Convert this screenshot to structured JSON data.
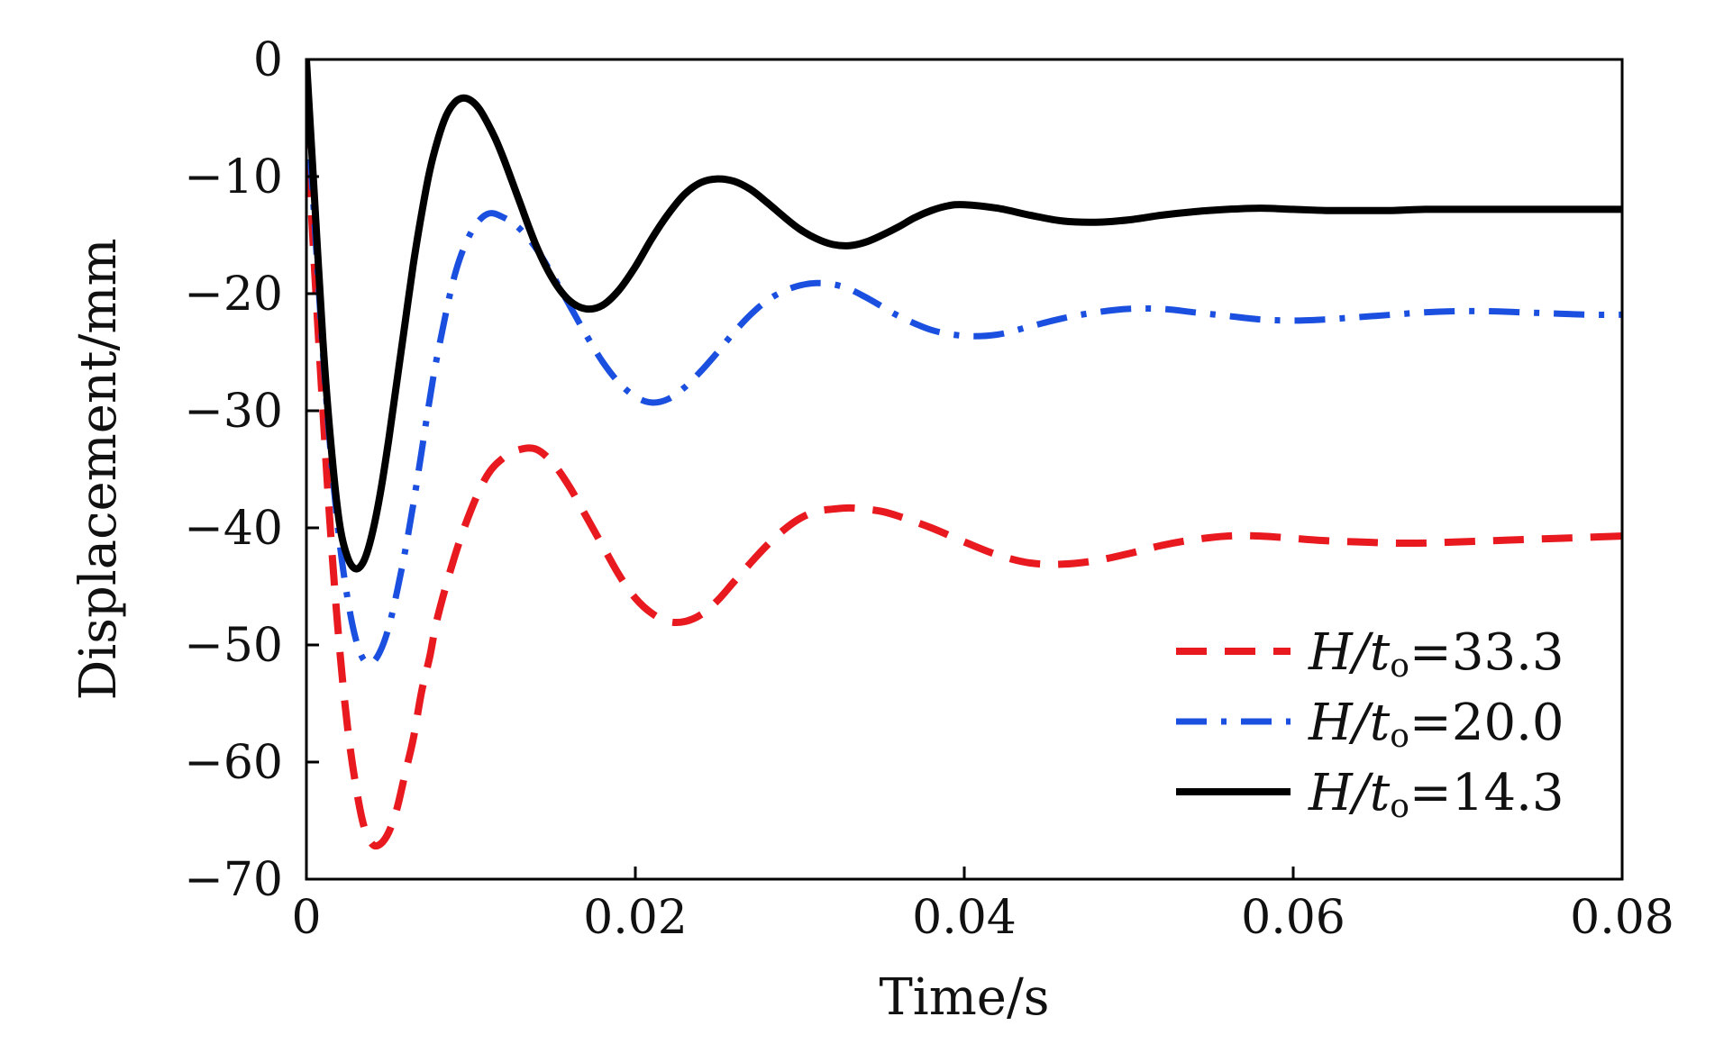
{
  "chart_data": {
    "type": "line",
    "xlabel": "Time/s",
    "ylabel": "Displacement/mm",
    "xlim": [
      0,
      0.08
    ],
    "ylim": [
      -70,
      0
    ],
    "xticks": [
      0,
      0.02,
      0.04,
      0.06,
      0.08
    ],
    "xtick_labels": [
      "0",
      "0.02",
      "0.04",
      "0.06",
      "0.08"
    ],
    "yticks": [
      0,
      -10,
      -20,
      -30,
      -40,
      -50,
      -60,
      -70
    ],
    "ytick_labels": [
      "0",
      "−10",
      "−20",
      "−30",
      "−40",
      "−50",
      "−60",
      "−70"
    ],
    "grid": false,
    "legend_position": "lower-right",
    "series": [
      {
        "name": "H/to=33.3",
        "legend": {
          "var": "H/t",
          "sub": "o",
          "rest": "=33.3"
        },
        "color": "#e8191f",
        "style": "dashed",
        "x": [
          0,
          0.0005,
          0.001,
          0.0015,
          0.002,
          0.0025,
          0.003,
          0.0035,
          0.004,
          0.0045,
          0.005,
          0.0055,
          0.006,
          0.0065,
          0.007,
          0.0075,
          0.008,
          0.009,
          0.01,
          0.011,
          0.012,
          0.013,
          0.014,
          0.015,
          0.016,
          0.017,
          0.018,
          0.019,
          0.02,
          0.021,
          0.022,
          0.023,
          0.024,
          0.025,
          0.026,
          0.027,
          0.028,
          0.029,
          0.03,
          0.031,
          0.032,
          0.033,
          0.034,
          0.035,
          0.036,
          0.038,
          0.04,
          0.042,
          0.044,
          0.046,
          0.048,
          0.05,
          0.052,
          0.054,
          0.056,
          0.058,
          0.06,
          0.062,
          0.064,
          0.066,
          0.068,
          0.07,
          0.072,
          0.074,
          0.076,
          0.078,
          0.08
        ],
        "y": [
          -5,
          -18,
          -30,
          -41,
          -50,
          -57,
          -62,
          -65.5,
          -67,
          -67,
          -66,
          -64,
          -61,
          -58,
          -54,
          -51,
          -47.5,
          -42.5,
          -38.5,
          -35.5,
          -34,
          -33.3,
          -33.3,
          -34.5,
          -36.5,
          -39,
          -41.5,
          -44,
          -46,
          -47.3,
          -48,
          -48,
          -47.4,
          -46.2,
          -44.6,
          -43,
          -41.5,
          -40.2,
          -39.2,
          -38.6,
          -38.4,
          -38.3,
          -38.4,
          -38.6,
          -39,
          -40,
          -41.2,
          -42.3,
          -43,
          -43.1,
          -42.8,
          -42.2,
          -41.5,
          -41,
          -40.7,
          -40.7,
          -40.9,
          -41.1,
          -41.2,
          -41.3,
          -41.3,
          -41.2,
          -41.1,
          -41,
          -40.9,
          -40.8,
          -40.7
        ]
      },
      {
        "name": "H/to=20.0",
        "legend": {
          "var": "H/t",
          "sub": "o",
          "rest": "=20.0"
        },
        "color": "#1a4fe0",
        "style": "dashdot",
        "x": [
          0,
          0.0005,
          0.001,
          0.0015,
          0.002,
          0.0025,
          0.003,
          0.0035,
          0.004,
          0.0045,
          0.005,
          0.0055,
          0.006,
          0.0065,
          0.007,
          0.0075,
          0.008,
          0.009,
          0.01,
          0.011,
          0.012,
          0.013,
          0.014,
          0.015,
          0.016,
          0.017,
          0.018,
          0.019,
          0.02,
          0.021,
          0.022,
          0.023,
          0.024,
          0.025,
          0.026,
          0.027,
          0.028,
          0.029,
          0.03,
          0.031,
          0.032,
          0.033,
          0.034,
          0.035,
          0.036,
          0.038,
          0.04,
          0.042,
          0.044,
          0.046,
          0.048,
          0.05,
          0.052,
          0.054,
          0.056,
          0.058,
          0.06,
          0.062,
          0.064,
          0.066,
          0.068,
          0.07,
          0.072,
          0.074,
          0.076,
          0.078,
          0.08
        ],
        "y": [
          -3,
          -14,
          -25,
          -34,
          -41,
          -46,
          -49.5,
          -51.3,
          -51.5,
          -50.5,
          -48.5,
          -45.5,
          -42,
          -38,
          -33.5,
          -29,
          -25,
          -18.5,
          -14.8,
          -13.2,
          -13.5,
          -14.5,
          -16.2,
          -18.5,
          -21,
          -23.5,
          -25.8,
          -27.6,
          -28.8,
          -29.3,
          -29,
          -28,
          -26.6,
          -25,
          -23.3,
          -21.8,
          -20.6,
          -19.8,
          -19.3,
          -19.1,
          -19.2,
          -19.6,
          -20.3,
          -21.1,
          -21.9,
          -23.1,
          -23.6,
          -23.5,
          -22.8,
          -22.1,
          -21.6,
          -21.3,
          -21.3,
          -21.6,
          -21.9,
          -22.2,
          -22.3,
          -22.2,
          -22,
          -21.8,
          -21.6,
          -21.5,
          -21.5,
          -21.6,
          -21.7,
          -21.8,
          -21.8
        ]
      },
      {
        "name": "H/to=14.3",
        "legend": {
          "var": "H/t",
          "sub": "o",
          "rest": "=14.3"
        },
        "color": "#000000",
        "style": "solid",
        "x": [
          0,
          0.0005,
          0.001,
          0.0015,
          0.002,
          0.0025,
          0.003,
          0.0035,
          0.004,
          0.0045,
          0.005,
          0.0055,
          0.006,
          0.0065,
          0.007,
          0.0075,
          0.008,
          0.0085,
          0.009,
          0.0095,
          0.01,
          0.0105,
          0.011,
          0.0115,
          0.012,
          0.013,
          0.014,
          0.015,
          0.016,
          0.017,
          0.018,
          0.019,
          0.02,
          0.021,
          0.022,
          0.023,
          0.024,
          0.025,
          0.026,
          0.027,
          0.028,
          0.029,
          0.03,
          0.031,
          0.032,
          0.033,
          0.034,
          0.035,
          0.036,
          0.037,
          0.038,
          0.039,
          0.04,
          0.042,
          0.044,
          0.046,
          0.048,
          0.05,
          0.052,
          0.054,
          0.056,
          0.058,
          0.06,
          0.062,
          0.064,
          0.066,
          0.068,
          0.07,
          0.072,
          0.074,
          0.076,
          0.078,
          0.08
        ],
        "y": [
          0,
          -12,
          -24,
          -33,
          -39.5,
          -42.5,
          -43.5,
          -42.8,
          -40.5,
          -37,
          -32.5,
          -27.5,
          -22.5,
          -17.5,
          -13.2,
          -9.5,
          -6.8,
          -4.8,
          -3.7,
          -3.3,
          -3.5,
          -4.2,
          -5.4,
          -6.8,
          -8.5,
          -12.3,
          -16,
          -18.8,
          -20.6,
          -21.3,
          -21,
          -19.7,
          -17.7,
          -15.3,
          -13.2,
          -11.5,
          -10.5,
          -10.2,
          -10.4,
          -11.1,
          -12.2,
          -13.4,
          -14.5,
          -15.3,
          -15.8,
          -15.9,
          -15.6,
          -15,
          -14.3,
          -13.5,
          -12.9,
          -12.5,
          -12.4,
          -12.7,
          -13.3,
          -13.8,
          -13.9,
          -13.7,
          -13.3,
          -13,
          -12.8,
          -12.7,
          -12.8,
          -12.9,
          -12.9,
          -12.9,
          -12.8,
          -12.8,
          -12.8,
          -12.8,
          -12.8,
          -12.8,
          -12.8
        ]
      }
    ]
  }
}
